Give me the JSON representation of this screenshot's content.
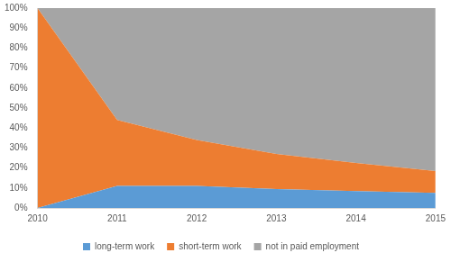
{
  "chart_data": {
    "type": "area",
    "stacked": true,
    "grid": false,
    "legend": "bottom",
    "categories": [
      "2010",
      "2011",
      "2012",
      "2013",
      "2014",
      "2015"
    ],
    "series": [
      {
        "name": "long-term work",
        "color": "#5b9bd5",
        "values": [
          0,
          11,
          11,
          9.5,
          8.5,
          7.5
        ]
      },
      {
        "name": "short-term work",
        "color": "#ed7d31",
        "values": [
          100,
          33,
          23,
          17.5,
          14,
          11
        ]
      },
      {
        "name": "not in paid employment",
        "color": "#a5a5a5",
        "values": [
          0,
          56,
          66,
          73,
          77.5,
          81.5
        ]
      }
    ],
    "ylim": [
      0,
      100
    ],
    "yticks": [
      {
        "value": 0,
        "label": "0%"
      },
      {
        "value": 10,
        "label": "10%"
      },
      {
        "value": 20,
        "label": "20%"
      },
      {
        "value": 30,
        "label": "30%"
      },
      {
        "value": 40,
        "label": "40%"
      },
      {
        "value": 50,
        "label": "50%"
      },
      {
        "value": 60,
        "label": "60%"
      },
      {
        "value": 70,
        "label": "70%"
      },
      {
        "value": 80,
        "label": "80%"
      },
      {
        "value": 90,
        "label": "90%"
      },
      {
        "value": 100,
        "label": "100%"
      }
    ]
  }
}
